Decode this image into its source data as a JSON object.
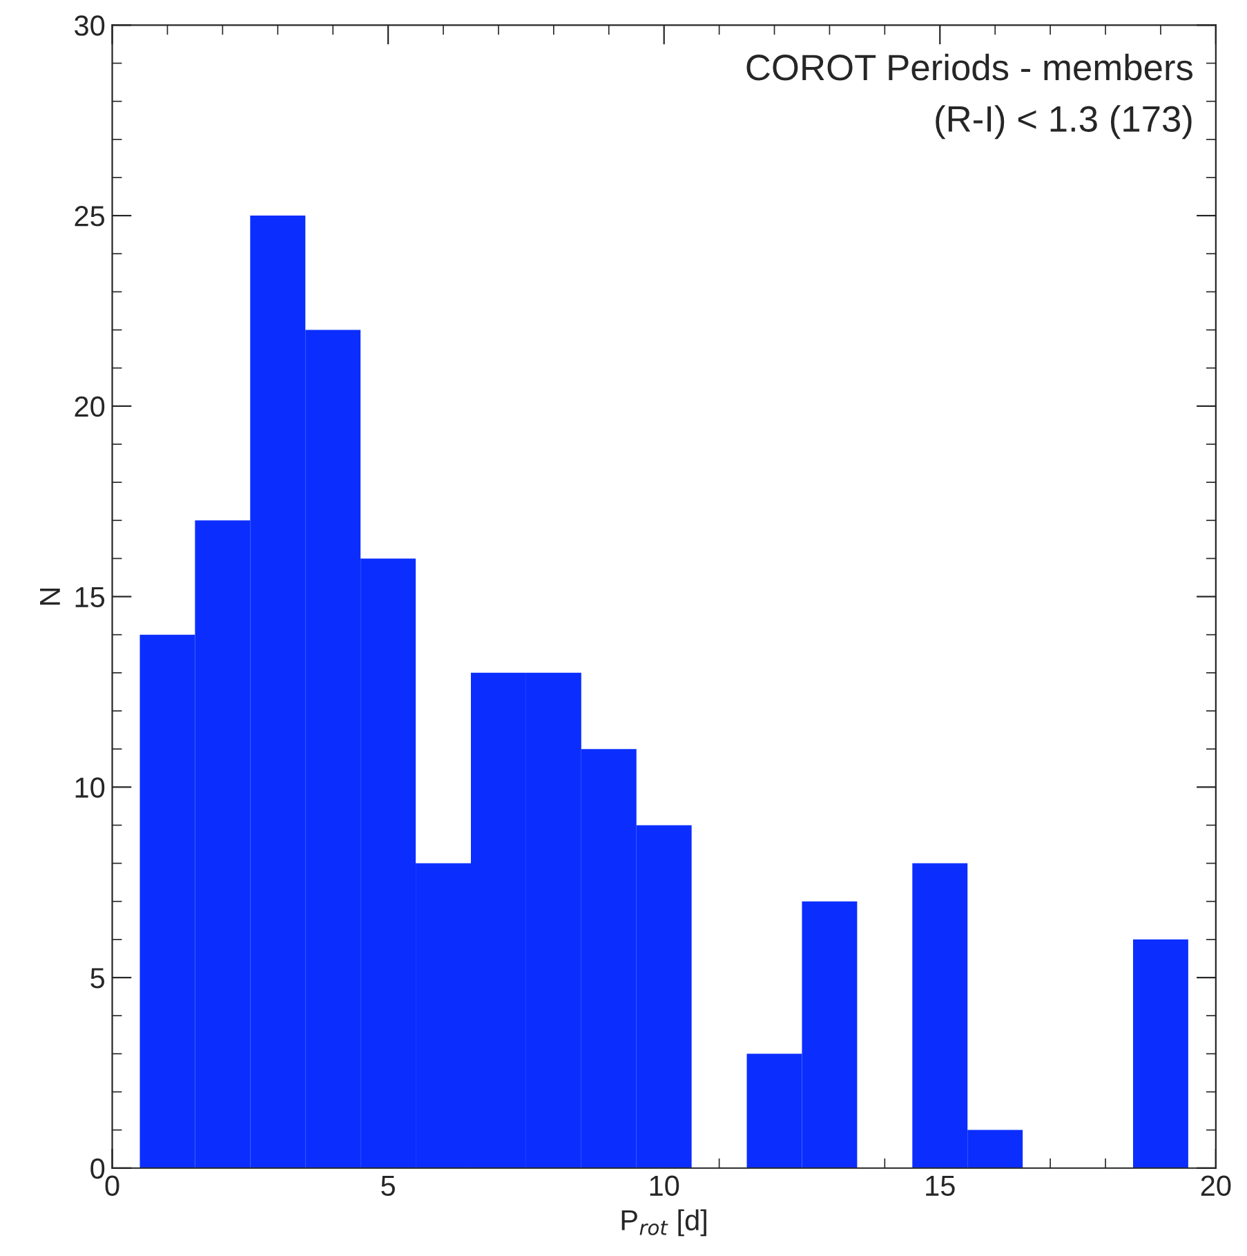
{
  "chart_data": {
    "type": "histogram",
    "bins": [
      0.5,
      1.5,
      2.5,
      3.5,
      4.5,
      5.5,
      6.5,
      7.5,
      8.5,
      9.5,
      10.5,
      11.5,
      12.5,
      13.5,
      14.5,
      15.5,
      16.5,
      17.5,
      18.5,
      19.5
    ],
    "values": [
      14,
      17,
      25,
      22,
      16,
      8,
      13,
      13,
      11,
      9,
      0,
      3,
      7,
      0,
      8,
      1,
      0,
      0,
      6
    ],
    "color": "#0b2eff",
    "xlabel": "P$_{rot}$ [d]",
    "ylabel": "N",
    "xlim": [
      0,
      20
    ],
    "xticks": [
      0,
      5,
      10,
      15,
      20
    ],
    "ylim": [
      0,
      30
    ],
    "yticks": [
      0,
      5,
      10,
      15,
      20,
      25,
      30
    ],
    "annotations": [
      "COROT Periods - members",
      "(R-I) < 1.3 (173)"
    ],
    "grid": false,
    "legend": false
  }
}
